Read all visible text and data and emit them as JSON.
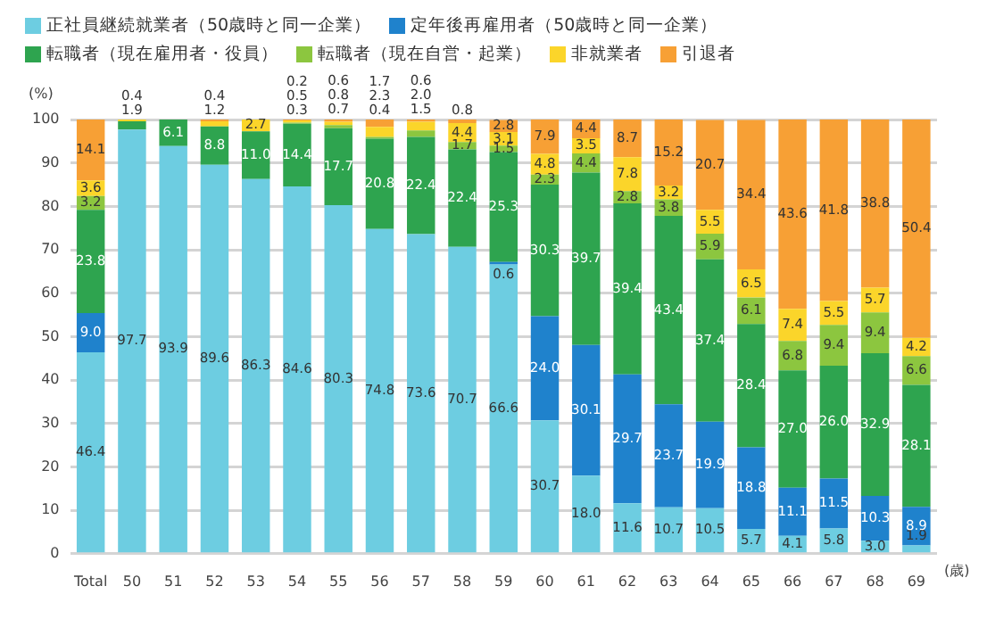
{
  "chart_data": {
    "type": "bar",
    "stacked": true,
    "xlabel": "(歳)",
    "ylabel": "(%)",
    "categories": [
      "Total",
      "50",
      "51",
      "52",
      "53",
      "54",
      "55",
      "56",
      "57",
      "58",
      "59",
      "60",
      "61",
      "62",
      "63",
      "64",
      "65",
      "66",
      "67",
      "68",
      "69"
    ],
    "series": [
      {
        "name": "正社員継続就業者（50歳時と同一企業）",
        "color": "#6dcde1",
        "values": [
          46.4,
          97.7,
          93.9,
          89.6,
          86.3,
          84.6,
          80.3,
          74.8,
          73.6,
          70.7,
          66.6,
          30.7,
          18.0,
          11.6,
          10.7,
          10.5,
          5.7,
          4.1,
          5.8,
          3.0,
          1.9
        ],
        "value_labels": [
          "46.4",
          "97.7",
          "93.9",
          "89.6",
          "86.3",
          "84.6",
          "80.3",
          "74.8",
          "73.6",
          "70.7",
          "66.6",
          "30.7",
          "18.0",
          "11.6",
          "10.7",
          "10.5",
          "5.7",
          "4.1",
          "5.8",
          "3.0",
          "1.9"
        ]
      },
      {
        "name": "定年後再雇用者（50歳時と同一企業）",
        "color": "#1f82cc",
        "values": [
          9.0,
          null,
          null,
          null,
          null,
          null,
          null,
          null,
          null,
          null,
          0.6,
          24.0,
          30.1,
          29.7,
          23.7,
          19.9,
          18.8,
          11.1,
          11.5,
          10.3,
          8.9
        ],
        "value_labels": [
          "9.0",
          null,
          null,
          null,
          null,
          null,
          null,
          null,
          null,
          null,
          "0.6",
          "24.0",
          "30.1",
          "29.7",
          "23.7",
          "19.9",
          "18.8",
          "11.1",
          "11.5",
          "10.3",
          "8.9"
        ]
      },
      {
        "name": "転職者（現在雇用者・役員）",
        "color": "#2ea44f",
        "values": [
          23.8,
          1.9,
          6.1,
          8.8,
          11.0,
          14.4,
          17.7,
          20.8,
          22.4,
          22.4,
          25.3,
          30.3,
          39.7,
          39.4,
          43.4,
          37.4,
          28.4,
          27.0,
          26.0,
          32.9,
          28.1
        ],
        "value_labels": [
          "23.8",
          "1.9",
          "6.1",
          "8.8",
          "11.0",
          "14.4",
          "17.7",
          "20.8",
          "22.4",
          "22.4",
          "25.3",
          "30.3",
          "39.7",
          "39.4",
          "43.4",
          "37.4",
          "28.4",
          "27.0",
          "26.0",
          "32.9",
          "28.1"
        ]
      },
      {
        "name": "転職者（現在自営・起業）",
        "color": "#8cc63f",
        "values": [
          3.2,
          null,
          null,
          null,
          null,
          0.3,
          0.7,
          0.4,
          1.5,
          1.7,
          1.5,
          2.3,
          4.4,
          2.8,
          3.8,
          5.9,
          6.1,
          6.8,
          9.4,
          9.4,
          6.6
        ],
        "value_labels": [
          "3.2",
          null,
          null,
          null,
          null,
          "0.3",
          "0.7",
          "0.4",
          "1.5",
          "1.7",
          "1.5",
          "2.3",
          "4.4",
          "2.8",
          "3.8",
          "5.9",
          "6.1",
          "6.8",
          "9.4",
          "9.4",
          "6.6"
        ]
      },
      {
        "name": "非就業者",
        "color": "#fbd52a",
        "values": [
          3.6,
          0.4,
          null,
          1.2,
          2.7,
          0.5,
          0.8,
          2.3,
          2.0,
          4.4,
          3.1,
          4.8,
          3.5,
          7.8,
          3.2,
          5.5,
          6.5,
          7.4,
          5.5,
          5.7,
          4.2
        ],
        "value_labels": [
          "3.6",
          "0.4",
          null,
          "1.2",
          "2.7",
          "0.5",
          "0.8",
          "2.3",
          "2.0",
          "4.4",
          "3.1",
          "4.8",
          "3.5",
          "7.8",
          "3.2",
          "5.5",
          "6.5",
          "7.4",
          "5.5",
          "5.7",
          "4.2"
        ]
      },
      {
        "name": "引退者",
        "color": "#f7a035",
        "values": [
          14.1,
          null,
          null,
          0.4,
          null,
          0.2,
          0.6,
          1.7,
          0.6,
          0.8,
          2.8,
          7.9,
          4.4,
          8.7,
          15.2,
          20.7,
          34.4,
          43.6,
          41.8,
          38.8,
          50.4
        ],
        "value_labels": [
          "14.1",
          null,
          null,
          "0.4",
          null,
          "0.2",
          "0.6",
          "1.7",
          "0.6",
          "0.8",
          "2.8",
          "7.9",
          "4.4",
          "8.7",
          "15.2",
          "20.7",
          "34.4",
          "43.6",
          "41.8",
          "38.8",
          "50.4"
        ]
      }
    ],
    "ylim": [
      0,
      100
    ],
    "yticks": [
      0,
      10,
      20,
      30,
      40,
      50,
      60,
      70,
      80,
      90,
      100
    ],
    "grid": "y",
    "legend": "top left"
  }
}
